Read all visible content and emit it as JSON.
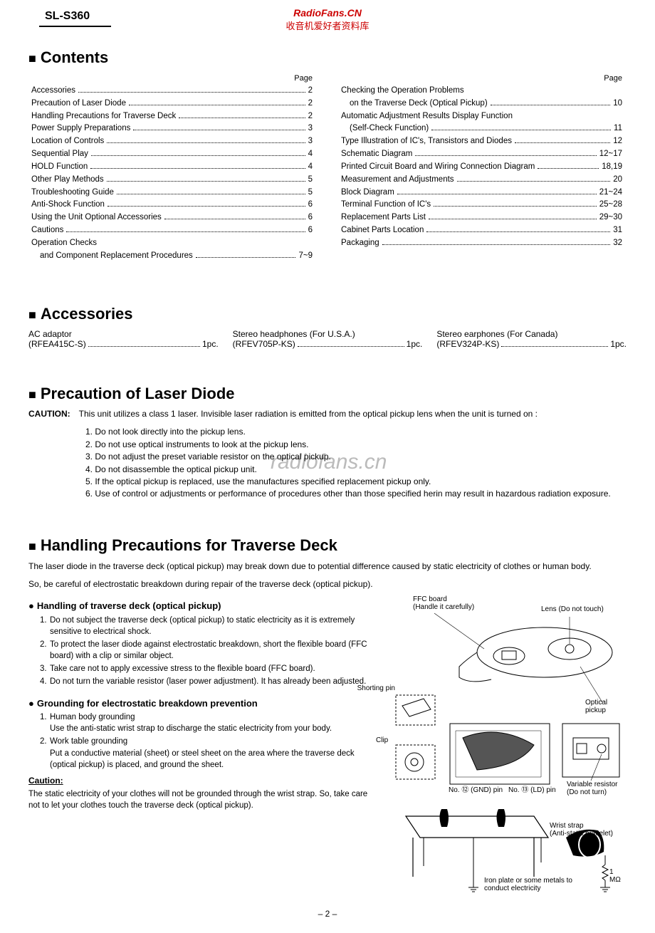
{
  "header": {
    "model": "SL-S360",
    "watermark_site": "RadioFans.CN",
    "watermark_zh": "收音机爱好者资料库",
    "watermark_mid": "radiofans.cn"
  },
  "colors": {
    "watermark_red": "#cc0000",
    "watermark_gray": "#bbbbbb",
    "text": "#000000",
    "bg": "#ffffff"
  },
  "sections": {
    "contents_title": "Contents",
    "accessories_title": "Accessories",
    "precaution_title": "Precaution of Laser Diode",
    "handling_title": "Handling Precautions for Traverse Deck",
    "page_label": "Page"
  },
  "contents_left": [
    {
      "label": "Accessories",
      "page": "2"
    },
    {
      "label": "Precaution of Laser Diode",
      "page": "2"
    },
    {
      "label": "Handling Precautions for Traverse Deck",
      "page": "2"
    },
    {
      "label": "Power Supply Preparations",
      "page": "3"
    },
    {
      "label": "Location of Controls",
      "page": "3"
    },
    {
      "label": "Sequential Play",
      "page": "4"
    },
    {
      "label": "HOLD Function",
      "page": "4"
    },
    {
      "label": "Other Play Methods",
      "page": "5"
    },
    {
      "label": "Troubleshooting Guide",
      "page": "5"
    },
    {
      "label": "Anti-Shock Function",
      "page": "6"
    },
    {
      "label": "Using the Unit Optional Accessories",
      "page": "6"
    },
    {
      "label": "Cautions",
      "page": "6"
    },
    {
      "label": "Operation Checks",
      "page": ""
    },
    {
      "label": "and Component Replacement Procedures",
      "page": "7~9",
      "indent": true
    }
  ],
  "contents_right": [
    {
      "label": "Checking the Operation Problems",
      "page": ""
    },
    {
      "label": "on the Traverse Deck (Optical Pickup)",
      "page": "10",
      "indent": true
    },
    {
      "label": "Automatic Adjustment Results Display Function",
      "page": ""
    },
    {
      "label": "(Self-Check Function)",
      "page": "11",
      "indent": true
    },
    {
      "label": "Type Illustration of IC's, Transistors and Diodes",
      "page": "12"
    },
    {
      "label": "Schematic Diagram",
      "page": "12~17"
    },
    {
      "label": "Printed Circuit Board and Wiring Connection Diagram",
      "page": "18,19"
    },
    {
      "label": "Measurement and Adjustments",
      "page": "20"
    },
    {
      "label": "Block Diagram",
      "page": "21~24"
    },
    {
      "label": "Terminal Function of IC's",
      "page": "25~28"
    },
    {
      "label": "Replacement Parts List",
      "page": "29~30"
    },
    {
      "label": "Cabinet Parts Location",
      "page": "31"
    },
    {
      "label": "Packaging",
      "page": "32"
    }
  ],
  "accessories": [
    {
      "line1": "AC adaptor",
      "part": "(RFEA415C-S)",
      "qty": "1pc."
    },
    {
      "line1": "Stereo headphones (For U.S.A.)",
      "part": "(RFEV705P-KS)",
      "qty": "1pc."
    },
    {
      "line1": "Stereo earphones (For Canada)",
      "part": "(RFEV324P-KS)",
      "qty": "1pc."
    }
  ],
  "precaution": {
    "caution_label": "CAUTION:",
    "caution_text": "This unit utilizes a class 1 laser. Invisible laser radiation is emitted from the optical pickup lens when the unit is turned on :",
    "items": [
      "Do not look directly into the pickup lens.",
      "Do not use optical instruments to look at the pickup lens.",
      "Do not adjust the preset variable resistor on the optical pickup.",
      "Do not disassemble the optical pickup unit.",
      "If the optical pickup is replaced, use the manufactures specified replacement pickup only.",
      "Use of control or adjustments or performance of procedures other than those specified herin may result in hazardous radiation exposure."
    ]
  },
  "handling": {
    "intro1": "The laser diode in the traverse deck (optical pickup) may break down due to potential difference caused by static electricity of clothes or human body.",
    "intro2": "So, be careful of electrostatic breakdown during repair of the traverse deck (optical pickup).",
    "sub1_title": "Handling of traverse deck (optical pickup)",
    "sub1_items": [
      "Do not subject the traverse deck (optical pickup) to static electricity as it is extremely sensitive to electrical shock.",
      "To protect the laser diode against electrostatic breakdown, short the flexible board (FFC board) with a clip or similar object.",
      "Take care not to apply excessive stress to the flexible board (FFC board).",
      "Do not turn the variable resistor (laser power adjustment). It has already been adjusted."
    ],
    "sub2_title": "Grounding for electrostatic breakdown prevention",
    "sub2_items": [
      {
        "t": "Human body grounding",
        "d": "Use the anti-static wrist strap to discharge the static electricity from your body."
      },
      {
        "t": "Work table grounding",
        "d": "Put a conductive material (sheet) or steel sheet on the area where the traverse deck (optical pickup) is placed, and ground the  sheet."
      }
    ],
    "caution_title": "Caution:",
    "caution_text": "The static electricity of your clothes will not be grounded through the wrist strap. So, take care not to let your clothes touch the traverse deck (optical pickup)."
  },
  "diagram_labels": {
    "ffc": "FFC board",
    "handle": "(Handle it carefully)",
    "lens": "Lens (Do not touch)",
    "shorting": "Shorting pin",
    "optical": "Optical pickup",
    "clip": "Clip",
    "gnd": "No. ⑫ (GND) pin",
    "ld": "No. ⑬ (LD) pin",
    "varres1": "Variable resistor",
    "varres2": "(Do not turn)",
    "wrist1": "Wrist strap",
    "wrist2": "(Anti-static bracelet)",
    "iron1": "Iron plate or some metals to",
    "iron2": "conduct electricity",
    "ohm": "1 MΩ"
  },
  "page_number": "– 2 –"
}
